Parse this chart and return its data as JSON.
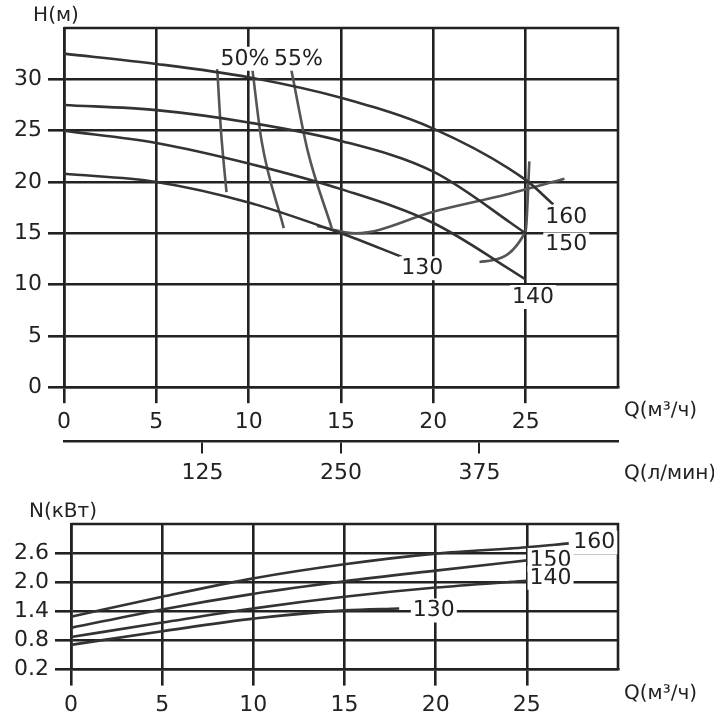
{
  "chart_data": [
    {
      "type": "line",
      "xlabel": "Q(м³/ч)",
      "x2label": "Q(л/мин)",
      "ylabel": "H(м)",
      "xlim": [
        0,
        30
      ],
      "xticks": [
        0,
        5,
        10,
        15,
        20,
        25
      ],
      "x2lim": [
        0,
        500
      ],
      "x2ticks": [
        125,
        250,
        375
      ],
      "ylim": [
        0,
        35
      ],
      "yticks": [
        0,
        5,
        10,
        15,
        20,
        25,
        30
      ],
      "grid": true,
      "legend": false,
      "marker": "none",
      "line_style": "solid",
      "series": [
        {
          "color": "#333333",
          "x": [
            0,
            5,
            10,
            15,
            20,
            25,
            26.5
          ],
          "values": [
            32.5,
            31.5,
            30.2,
            28.2,
            25.2,
            20.2,
            17.8
          ]
        },
        {
          "color": "#333333",
          "x": [
            0,
            5,
            10,
            15,
            20,
            25
          ],
          "values": [
            27.5,
            27,
            25.8,
            24,
            21,
            15
          ]
        },
        {
          "color": "#333333",
          "x": [
            0,
            5,
            10,
            15,
            20,
            25
          ],
          "values": [
            25,
            23.8,
            21.8,
            19.3,
            16,
            10.5
          ]
        },
        {
          "color": "#333333",
          "x": [
            0,
            5,
            10,
            15,
            18.3
          ],
          "values": [
            20.8,
            20,
            18,
            15,
            12.7
          ]
        },
        {
          "color": "#555555",
          "x": [
            8.3,
            8.5,
            8.8
          ],
          "values": [
            31,
            25,
            19
          ]
        },
        {
          "color": "#555555",
          "x": [
            10.2,
            10.7,
            11.9
          ],
          "values": [
            31,
            24,
            15.5
          ]
        },
        {
          "color": "#555555",
          "x": [
            12.3,
            13.2,
            14.5
          ],
          "values": [
            31,
            23,
            15.5
          ]
        },
        {
          "color": "#555555",
          "x": [
            13.7,
            15.8,
            20,
            24,
            27.1
          ],
          "values": [
            15.7,
            15,
            17.1,
            18.8,
            20.3
          ]
        },
        {
          "color": "#555555",
          "x": [
            22.5,
            25,
            25.2
          ],
          "values": [
            12.2,
            15.2,
            22
          ]
        }
      ],
      "annotations": [
        {
          "text": "50%",
          "x": 9.8,
          "y": 32
        },
        {
          "text": "55%",
          "x": 12.7,
          "y": 32
        },
        {
          "text": "160",
          "x": 27.2,
          "y": 16.6
        },
        {
          "text": "150",
          "x": 27.2,
          "y": 13.9
        },
        {
          "text": "140",
          "x": 25.4,
          "y": 8.8
        },
        {
          "text": "130",
          "x": 19.4,
          "y": 11.6
        }
      ]
    },
    {
      "type": "line",
      "xlabel": "Q(м³/ч)",
      "ylabel": "N(кВт)",
      "xlim": [
        0,
        30
      ],
      "xticks": [
        0,
        5,
        10,
        15,
        20,
        25
      ],
      "ylim": [
        0.2,
        3.2
      ],
      "yticks": [
        0.2,
        0.8,
        1.4,
        {
          "value": 2,
          "label": "2.0"
        },
        2.6
      ],
      "grid": true,
      "legend": false,
      "marker": "none",
      "line_style": "solid",
      "series": [
        {
          "color": "#333333",
          "x": [
            0,
            5,
            10,
            15,
            20,
            25,
            27.3
          ],
          "values": [
            1.29,
            1.7,
            2.08,
            2.37,
            2.59,
            2.72,
            2.8
          ]
        },
        {
          "color": "#333333",
          "x": [
            0,
            5,
            10,
            15,
            20,
            25
          ],
          "values": [
            1.06,
            1.44,
            1.76,
            2.02,
            2.24,
            2.45
          ]
        },
        {
          "color": "#333333",
          "x": [
            0,
            5,
            10,
            15,
            20,
            25
          ],
          "values": [
            0.87,
            1.17,
            1.46,
            1.7,
            1.89,
            2.03
          ]
        },
        {
          "color": "#333333",
          "x": [
            0,
            5,
            10,
            15,
            18
          ],
          "values": [
            0.71,
            0.99,
            1.25,
            1.42,
            1.46
          ]
        }
      ],
      "annotations": [
        {
          "text": "160",
          "x": 28.7,
          "y": 2.82
        },
        {
          "text": "150",
          "x": 26.3,
          "y": 2.46
        },
        {
          "text": "140",
          "x": 26.3,
          "y": 2.09
        },
        {
          "text": "130",
          "x": 19.9,
          "y": 1.42
        }
      ]
    }
  ]
}
